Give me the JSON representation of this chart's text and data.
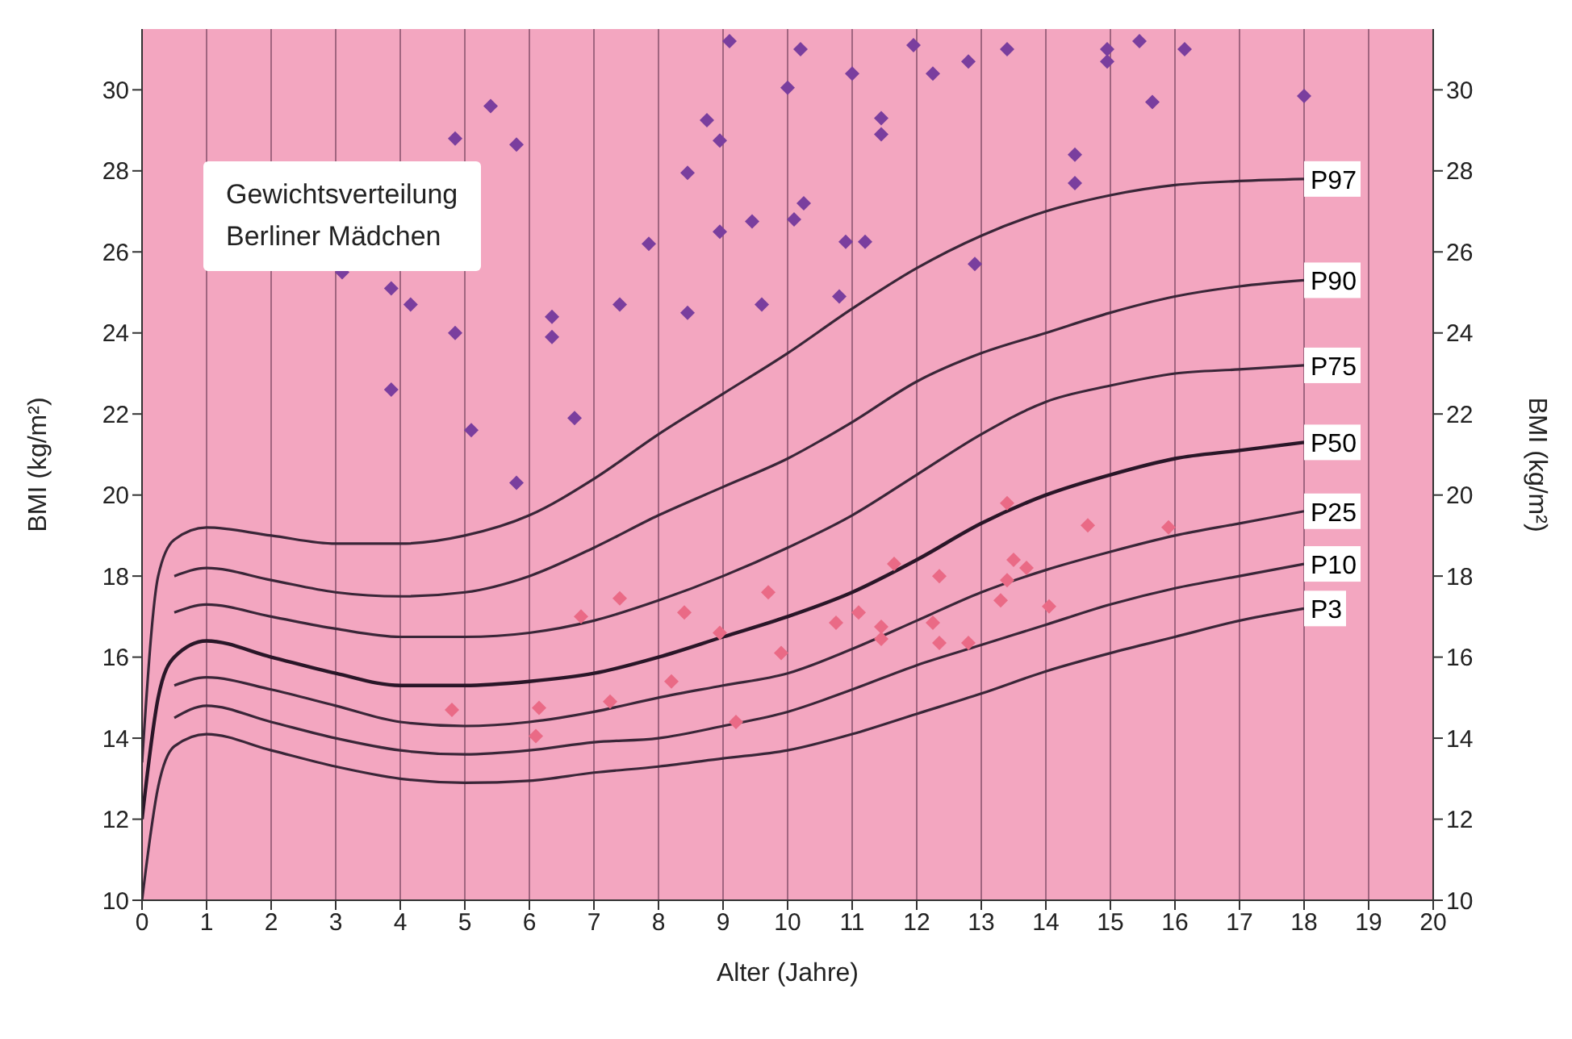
{
  "chart_data": {
    "type": "line",
    "title": "Gewichtsverteilung\nBerliner Mädchen",
    "xlabel": "Alter (Jahre)",
    "ylabel": "BMI (kg/m²)",
    "y2label": "BMI (kg/m²)",
    "xlim": [
      0,
      20
    ],
    "xticks": [
      0,
      1,
      2,
      3,
      4,
      5,
      6,
      7,
      8,
      9,
      10,
      11,
      12,
      13,
      14,
      15,
      16,
      17,
      18,
      19,
      20
    ],
    "ylim": [
      10,
      31.5
    ],
    "yticks": [
      10,
      12,
      14,
      16,
      18,
      20,
      22,
      24,
      26,
      28,
      30
    ],
    "y2lim": [
      10,
      31.5
    ],
    "y2ticks": [
      10,
      12,
      14,
      16,
      18,
      20,
      22,
      24,
      26,
      28,
      30
    ],
    "grid": true,
    "legend": false,
    "marker": "none",
    "line_style": "solid",
    "series": [
      {
        "name": "P97",
        "color": "#3a2638",
        "x": [
          0,
          0.25,
          0.5,
          1,
          2,
          3,
          4,
          5,
          6,
          7,
          8,
          9,
          10,
          11,
          12,
          13,
          14,
          15,
          16,
          17,
          18
        ],
        "values": [
          13.4,
          18.0,
          18.9,
          19.2,
          19.0,
          18.8,
          18.8,
          19.0,
          19.5,
          20.4,
          21.5,
          22.5,
          23.5,
          24.6,
          25.6,
          26.4,
          27.0,
          27.4,
          27.65,
          27.75,
          27.8
        ]
      },
      {
        "name": "P90",
        "color": "#3a2638",
        "x": [
          0.5,
          1,
          2,
          3,
          4,
          5,
          6,
          7,
          8,
          9,
          10,
          11,
          12,
          13,
          14,
          15,
          16,
          17,
          18
        ],
        "values": [
          18.0,
          18.2,
          17.9,
          17.6,
          17.5,
          17.6,
          18.0,
          18.7,
          19.5,
          20.2,
          20.9,
          21.8,
          22.8,
          23.5,
          24.0,
          24.5,
          24.9,
          25.15,
          25.3
        ]
      },
      {
        "name": "P75",
        "color": "#3a2638",
        "x": [
          0.5,
          1,
          2,
          3,
          4,
          5,
          6,
          7,
          8,
          9,
          10,
          11,
          12,
          13,
          14,
          15,
          16,
          17,
          18
        ],
        "values": [
          17.1,
          17.3,
          17.0,
          16.7,
          16.5,
          16.5,
          16.6,
          16.9,
          17.4,
          18.0,
          18.7,
          19.5,
          20.5,
          21.5,
          22.3,
          22.7,
          23.0,
          23.1,
          23.2
        ]
      },
      {
        "name": "P50",
        "color": "#2a1628",
        "x": [
          0,
          0.25,
          0.5,
          1,
          2,
          3,
          4,
          5,
          6,
          7,
          8,
          9,
          10,
          11,
          12,
          13,
          14,
          15,
          16,
          17,
          18
        ],
        "values": [
          12.0,
          15.0,
          16.0,
          16.4,
          16.0,
          15.6,
          15.3,
          15.3,
          15.4,
          15.6,
          16.0,
          16.5,
          17.0,
          17.6,
          18.4,
          19.3,
          20.0,
          20.5,
          20.9,
          21.1,
          21.3
        ]
      },
      {
        "name": "P25",
        "color": "#3a2638",
        "x": [
          0.5,
          1,
          2,
          3,
          4,
          5,
          6,
          7,
          8,
          9,
          10,
          11,
          12,
          13,
          14,
          15,
          16,
          17,
          18
        ],
        "values": [
          15.3,
          15.5,
          15.2,
          14.8,
          14.4,
          14.3,
          14.4,
          14.65,
          15.0,
          15.3,
          15.6,
          16.2,
          16.9,
          17.6,
          18.15,
          18.6,
          19.0,
          19.3,
          19.6
        ]
      },
      {
        "name": "P10",
        "color": "#3a2638",
        "x": [
          0.5,
          1,
          2,
          3,
          4,
          5,
          6,
          7,
          8,
          9,
          10,
          11,
          12,
          13,
          14,
          15,
          16,
          17,
          18
        ],
        "values": [
          14.5,
          14.8,
          14.4,
          14.0,
          13.7,
          13.6,
          13.7,
          13.9,
          14.0,
          14.3,
          14.65,
          15.2,
          15.8,
          16.3,
          16.8,
          17.3,
          17.7,
          18.0,
          18.3
        ]
      },
      {
        "name": "P3",
        "color": "#3a2638",
        "x": [
          0,
          0.25,
          0.5,
          1,
          2,
          3,
          4,
          5,
          6,
          7,
          8,
          9,
          10,
          11,
          12,
          13,
          14,
          15,
          16,
          17,
          18
        ],
        "values": [
          10.0,
          12.8,
          13.8,
          14.1,
          13.7,
          13.3,
          13.0,
          12.9,
          12.95,
          13.15,
          13.3,
          13.5,
          13.7,
          14.1,
          14.6,
          15.1,
          15.65,
          16.1,
          16.5,
          16.9,
          17.2
        ]
      },
      {
        "type": "scatter",
        "marker": "diamond",
        "color": "#7a3e9e",
        "x": [
          3.1,
          3.86,
          3.86,
          4.16,
          4.85,
          4.85,
          5.1,
          5.4,
          5.8,
          5.8,
          6.35,
          6.35,
          6.7,
          7.4,
          7.85,
          8.45,
          8.45,
          8.75,
          8.95,
          8.95,
          9.1,
          9.45,
          9.6,
          10.0,
          10.1,
          10.25,
          10.2,
          10.8,
          10.9,
          11.2,
          11.0,
          11.45,
          11.45,
          11.95,
          12.25,
          12.8,
          12.9,
          13.4,
          14.45,
          14.45,
          14.95,
          14.95,
          15.45,
          15.65,
          16.15,
          18.0
        ],
        "values": [
          25.5,
          25.1,
          22.6,
          24.7,
          24.0,
          28.8,
          21.6,
          29.6,
          28.65,
          20.3,
          24.4,
          23.9,
          21.9,
          24.7,
          26.2,
          27.95,
          24.5,
          29.25,
          28.75,
          26.5,
          31.2,
          26.75,
          24.7,
          30.05,
          26.8,
          27.2,
          31.0,
          24.9,
          26.25,
          26.25,
          30.4,
          29.3,
          28.9,
          31.1,
          30.4,
          30.7,
          25.7,
          31.0,
          28.4,
          27.7,
          31.0,
          30.7,
          31.2,
          29.7,
          31.0,
          29.85
        ]
      },
      {
        "type": "scatter",
        "marker": "diamond",
        "color": "#ea6a86",
        "x": [
          4.8,
          6.15,
          6.1,
          6.8,
          7.4,
          7.25,
          8.4,
          8.2,
          8.95,
          9.2,
          9.7,
          9.9,
          13.4,
          14.65,
          15.9,
          11.65,
          12.35,
          13.5,
          13.7,
          13.4,
          13.3,
          14.05,
          11.1,
          10.75,
          11.45,
          11.45,
          12.25,
          12.35,
          12.8
        ],
        "values": [
          14.7,
          14.75,
          14.05,
          17.0,
          17.45,
          14.9,
          17.1,
          15.4,
          16.6,
          14.4,
          17.6,
          16.1,
          19.8,
          19.25,
          19.2,
          18.3,
          18.0,
          18.4,
          18.2,
          17.9,
          17.4,
          17.25,
          17.1,
          16.85,
          16.75,
          16.45,
          16.85,
          16.35,
          16.35
        ]
      }
    ]
  }
}
